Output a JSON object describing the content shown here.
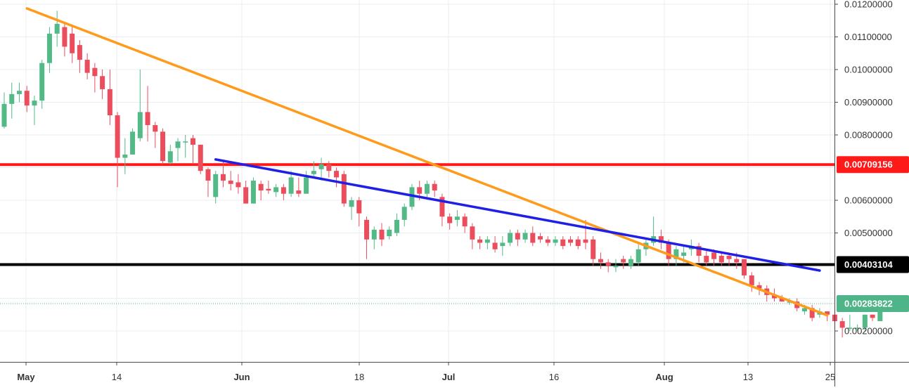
{
  "chart_data": {
    "type": "candlestick",
    "y_axis": {
      "position": "right",
      "range": [
        0.00118,
        0.0122
      ],
      "ticks": [
        "0.01200000",
        "0.01100000",
        "0.01000000",
        "0.00900000",
        "0.00800000",
        "0.00600000",
        "0.00500000",
        "0.00200000"
      ]
    },
    "x_axis": {
      "ticks": [
        {
          "label": "May",
          "bold": true
        },
        {
          "label": "14",
          "bold": false
        },
        {
          "label": "Jun",
          "bold": true
        },
        {
          "label": "18",
          "bold": false
        },
        {
          "label": "Jul",
          "bold": true
        },
        {
          "label": "16",
          "bold": false
        },
        {
          "label": "Aug",
          "bold": true
        },
        {
          "label": "13",
          "bold": false
        },
        {
          "label": "25",
          "bold": false
        }
      ]
    },
    "grid": true,
    "colors": {
      "up": "#53b987",
      "down": "#eb4d5c",
      "grid": "#e9eef2",
      "axis_text": "#333333"
    },
    "levels": [
      {
        "value": 0.00709156,
        "label": "0.00709156",
        "color": "#ff1a1a",
        "style": "solid"
      },
      {
        "value": 0.00403104,
        "label": "0.00403104",
        "color": "#000000",
        "style": "solid"
      },
      {
        "value": 0.00283822,
        "label": "0.00283822",
        "color": "#4fb589",
        "style": "dotted"
      }
    ],
    "trendlines": [
      {
        "name": "orange",
        "color": "#ff9a1a",
        "from": [
          3,
          0.01187
        ],
        "to": [
          109,
          0.00248
        ]
      },
      {
        "name": "blue",
        "color": "#1f1fe6",
        "from": [
          28,
          0.00725
        ],
        "to": [
          108,
          0.00385
        ]
      }
    ],
    "candles": [
      [
        0.00825,
        0.00895,
        0.0082,
        0.0093
      ],
      [
        0.00895,
        0.00925,
        0.0085,
        0.0096
      ],
      [
        0.00925,
        0.00935,
        0.009,
        0.0096
      ],
      [
        0.00935,
        0.0089,
        0.0087,
        0.0095
      ],
      [
        0.0089,
        0.00905,
        0.0083,
        0.0092
      ],
      [
        0.00905,
        0.0102,
        0.0088,
        0.0103
      ],
      [
        0.0102,
        0.0111,
        0.0099,
        0.0113
      ],
      [
        0.0111,
        0.0114,
        0.0107,
        0.0118
      ],
      [
        0.0113,
        0.0107,
        0.0104,
        0.0114
      ],
      [
        0.0111,
        0.0105,
        0.0102,
        0.0113
      ],
      [
        0.01075,
        0.0103,
        0.0099,
        0.0109
      ],
      [
        0.0103,
        0.0099,
        0.0097,
        0.0105
      ],
      [
        0.01005,
        0.0098,
        0.0093,
        0.0102
      ],
      [
        0.0098,
        0.0094,
        0.0091,
        0.01
      ],
      [
        0.0094,
        0.0086,
        0.0083,
        0.01
      ],
      [
        0.0086,
        0.0073,
        0.0064,
        0.0087
      ],
      [
        0.0073,
        0.0074,
        0.0068,
        0.0079
      ],
      [
        0.0074,
        0.0081,
        0.0074,
        0.0082
      ],
      [
        0.0079,
        0.0087,
        0.0078,
        0.01
      ],
      [
        0.0087,
        0.0083,
        0.0078,
        0.0095
      ],
      [
        0.0083,
        0.0081,
        0.0076,
        0.0084
      ],
      [
        0.0081,
        0.0072,
        0.0071,
        0.0082
      ],
      [
        0.00715,
        0.0075,
        0.0071,
        0.0077
      ],
      [
        0.0076,
        0.0078,
        0.0072,
        0.0079
      ],
      [
        0.0078,
        0.0078,
        0.0073,
        0.008
      ],
      [
        0.0079,
        0.0077,
        0.0071,
        0.008
      ],
      [
        0.0077,
        0.0069,
        0.0068,
        0.0076
      ],
      [
        0.00695,
        0.0066,
        0.0061,
        0.007
      ],
      [
        0.0061,
        0.0068,
        0.0059,
        0.0069
      ],
      [
        0.0068,
        0.0066,
        0.0064,
        0.0072
      ],
      [
        0.0066,
        0.0065,
        0.0063,
        0.0069
      ],
      [
        0.00655,
        0.0064,
        0.0062,
        0.0068
      ],
      [
        0.0064,
        0.0059,
        0.0059,
        0.0066
      ],
      [
        0.0059,
        0.0066,
        0.0059,
        0.0067
      ],
      [
        0.0065,
        0.0063,
        0.006,
        0.0066
      ],
      [
        0.00635,
        0.0063,
        0.0062,
        0.0066
      ],
      [
        0.00625,
        0.0064,
        0.0061,
        0.0065
      ],
      [
        0.0064,
        0.0062,
        0.006,
        0.0065
      ],
      [
        0.0062,
        0.0067,
        0.0061,
        0.0069
      ],
      [
        0.0063,
        0.0062,
        0.0061,
        0.0067
      ],
      [
        0.0062,
        0.0067,
        0.0062,
        0.0069
      ],
      [
        0.0068,
        0.0069,
        0.0067,
        0.0072
      ],
      [
        0.00695,
        0.0071,
        0.0066,
        0.0073
      ],
      [
        0.0071,
        0.0069,
        0.0067,
        0.0072
      ],
      [
        0.0069,
        0.0067,
        0.0064,
        0.007
      ],
      [
        0.0068,
        0.0059,
        0.0058,
        0.0069
      ],
      [
        0.0058,
        0.006,
        0.0054,
        0.0061
      ],
      [
        0.006,
        0.0056,
        0.0052,
        0.0061
      ],
      [
        0.0054,
        0.0048,
        0.0042,
        0.0055
      ],
      [
        0.0048,
        0.0051,
        0.0045,
        0.0052
      ],
      [
        0.0051,
        0.0048,
        0.0046,
        0.0053
      ],
      [
        0.0049,
        0.0051,
        0.0048,
        0.0052
      ],
      [
        0.005,
        0.0054,
        0.0049,
        0.0056
      ],
      [
        0.0054,
        0.0058,
        0.0052,
        0.0059
      ],
      [
        0.0058,
        0.0064,
        0.0057,
        0.0065
      ],
      [
        0.0064,
        0.0062,
        0.006,
        0.0066
      ],
      [
        0.0062,
        0.0065,
        0.0061,
        0.0066
      ],
      [
        0.0065,
        0.0063,
        0.0061,
        0.0066
      ],
      [
        0.0061,
        0.0055,
        0.0052,
        0.0062
      ],
      [
        0.0055,
        0.0053,
        0.0051,
        0.0056
      ],
      [
        0.0054,
        0.0055,
        0.0052,
        0.0057
      ],
      [
        0.0055,
        0.0052,
        0.005,
        0.0056
      ],
      [
        0.0052,
        0.0048,
        0.0045,
        0.0053
      ],
      [
        0.0048,
        0.0047,
        0.0045,
        0.0049
      ],
      [
        0.0047,
        0.0048,
        0.0045,
        0.0049
      ],
      [
        0.0047,
        0.0045,
        0.0044,
        0.0049
      ],
      [
        0.0046,
        0.0047,
        0.0043,
        0.0049
      ],
      [
        0.0047,
        0.005,
        0.0046,
        0.0051
      ],
      [
        0.005,
        0.0048,
        0.0046,
        0.0051
      ],
      [
        0.0048,
        0.005,
        0.0047,
        0.0051
      ],
      [
        0.005,
        0.0047,
        0.0046,
        0.0052
      ],
      [
        0.0049,
        0.0048,
        0.0047,
        0.005
      ],
      [
        0.0048,
        0.0047,
        0.0046,
        0.0049
      ],
      [
        0.0047,
        0.0048,
        0.0046,
        0.0049
      ],
      [
        0.0048,
        0.0046,
        0.0045,
        0.0049
      ],
      [
        0.0048,
        0.0047,
        0.0046,
        0.0049
      ],
      [
        0.0048,
        0.0046,
        0.0045,
        0.0049
      ],
      [
        0.0048,
        0.0047,
        0.0045,
        0.0054
      ],
      [
        0.0048,
        0.0042,
        0.004,
        0.0049
      ],
      [
        0.0042,
        0.0041,
        0.0039,
        0.0044
      ],
      [
        0.0041,
        0.004,
        0.0038,
        0.0042
      ],
      [
        0.00395,
        0.004,
        0.0038,
        0.0042
      ],
      [
        0.0042,
        0.0041,
        0.0039,
        0.0043
      ],
      [
        0.004,
        0.0042,
        0.0039,
        0.0043
      ],
      [
        0.0041,
        0.0045,
        0.004,
        0.0047
      ],
      [
        0.0045,
        0.0047,
        0.0043,
        0.0048
      ],
      [
        0.0047,
        0.0049,
        0.0046,
        0.0055
      ],
      [
        0.0049,
        0.0047,
        0.0045,
        0.0051
      ],
      [
        0.0047,
        0.0042,
        0.004,
        0.0048
      ],
      [
        0.0042,
        0.0045,
        0.004,
        0.0046
      ],
      [
        0.0043,
        0.0044,
        0.0041,
        0.0046
      ],
      [
        0.0045,
        0.0046,
        0.0043,
        0.0048
      ],
      [
        0.0046,
        0.0043,
        0.0041,
        0.0047
      ],
      [
        0.0043,
        0.0041,
        0.004,
        0.0045
      ],
      [
        0.0044,
        0.0042,
        0.004,
        0.0045
      ],
      [
        0.0043,
        0.0041,
        0.004,
        0.0044
      ],
      [
        0.0043,
        0.0042,
        0.004,
        0.0044
      ],
      [
        0.0042,
        0.0041,
        0.0039,
        0.0044
      ],
      [
        0.0042,
        0.0037,
        0.0036,
        0.0042
      ],
      [
        0.0037,
        0.0034,
        0.0032,
        0.0038
      ],
      [
        0.0034,
        0.0033,
        0.0031,
        0.0035
      ],
      [
        0.0033,
        0.0031,
        0.0029,
        0.0034
      ],
      [
        0.0031,
        0.003,
        0.0029,
        0.0033
      ],
      [
        0.003,
        0.0029,
        0.0029,
        0.0031
      ],
      [
        0.0029,
        0.0029,
        0.0028,
        0.003
      ],
      [
        0.0029,
        0.0027,
        0.0026,
        0.003
      ],
      [
        0.0026,
        0.0027,
        0.0025,
        0.0028
      ],
      [
        0.0027,
        0.0024,
        0.0023,
        0.0028
      ],
      [
        0.0025,
        0.0026,
        0.0024,
        0.0027
      ],
      [
        0.0026,
        0.0025,
        0.0023,
        0.0026
      ],
      [
        0.0025,
        0.0023,
        0.0021,
        0.0026
      ],
      [
        0.0023,
        0.0021,
        0.0018,
        0.0024
      ],
      [
        0.0021,
        0.0021,
        0.002,
        0.0025
      ],
      [
        0.0021,
        0.0021,
        0.002,
        0.0022
      ],
      [
        0.0021,
        0.0025,
        0.002,
        0.0025
      ],
      [
        0.0025,
        0.0024,
        0.0023,
        0.0025
      ],
      [
        0.0023,
        0.0026,
        0.0023,
        0.0027
      ],
      [
        0.0026,
        0.0028,
        0.0026,
        0.003
      ]
    ]
  }
}
